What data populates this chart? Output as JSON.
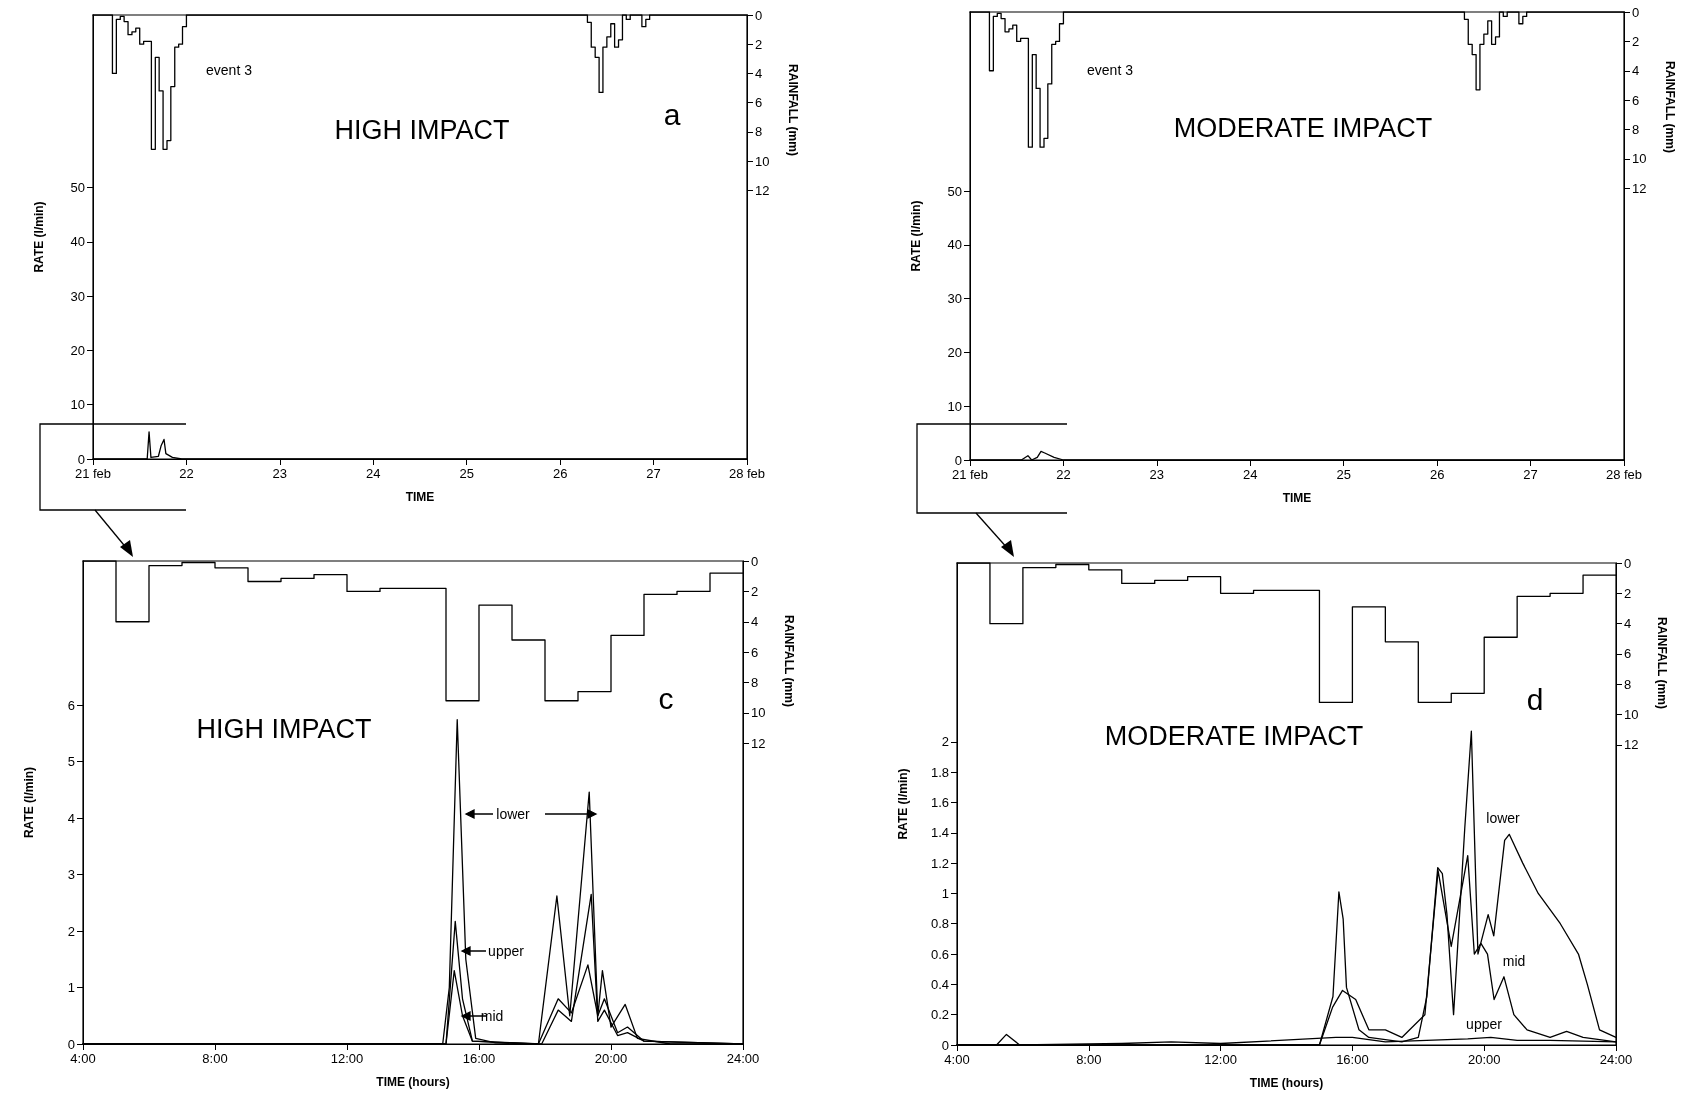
{
  "chart_data": [
    {
      "type": "line",
      "title": "HIGH IMPACT",
      "subtitle": "a",
      "xlabel": "TIME",
      "ylabel": "RATE (l/min)",
      "y2label": "RAINFALL (mm)",
      "marker": "none",
      "line_style": "solid",
      "annotations": [
        "event 3"
      ],
      "xlim": [
        21,
        28
      ],
      "xticks": [
        {
          "value": 21,
          "label": "21 feb"
        },
        22,
        23,
        24,
        25,
        26,
        27,
        {
          "value": 28,
          "label": "28 feb"
        }
      ],
      "ylim": [
        0,
        81.8
      ],
      "yticks": [
        0,
        10,
        20,
        30,
        40,
        50
      ],
      "y2lim": [
        30.4,
        0
      ],
      "y2ticks": [
        0,
        2,
        4,
        6,
        8,
        10,
        12
      ],
      "series": [
        {
          "type": "line",
          "color": "#000000",
          "x": [
            21,
            21.58,
            21.6,
            21.62,
            21.7,
            21.73,
            21.76,
            21.78,
            21.85,
            21.95,
            28
          ],
          "values": [
            0,
            0,
            5.0,
            0.3,
            0.5,
            2.5,
            3.6,
            1.0,
            0.3,
            0,
            0
          ]
        },
        {
          "type": "step",
          "axis": "y2",
          "color": "#000000",
          "x": [
            21,
            21.167,
            21.208,
            21.25,
            21.292,
            21.333,
            21.375,
            21.417,
            21.458,
            21.5,
            21.542,
            21.583,
            21.625,
            21.667,
            21.708,
            21.75,
            21.792,
            21.833,
            21.875,
            21.917,
            21.958,
            22,
            26.292,
            26.333,
            26.375,
            26.417,
            26.458,
            26.5,
            26.542,
            26.583,
            26.625,
            26.667,
            26.708,
            26.75,
            26.792,
            26.833,
            26.875,
            26.917,
            26.958,
            27,
            28
          ],
          "values": [
            0,
            0,
            4.0,
            0.3,
            0.1,
            0.45,
            1.35,
            1.15,
            0.9,
            2.0,
            1.8,
            1.8,
            9.2,
            2.9,
            5.2,
            9.2,
            8.6,
            4.9,
            2.2,
            2.0,
            0.8,
            0,
            0.5,
            2.2,
            2.9,
            5.3,
            2.2,
            1.5,
            0.6,
            2.2,
            1.7,
            0,
            0.3,
            0,
            0,
            0,
            0.8,
            0.3,
            0,
            0,
            0
          ]
        }
      ]
    },
    {
      "type": "line",
      "title": "MODERATE IMPACT",
      "xlabel": "TIME",
      "ylabel": "RATE (l/min)",
      "y2label": "RAINFALL (mm)",
      "marker": "none",
      "line_style": "solid",
      "annotations": [
        "event 3"
      ],
      "xlim": [
        21,
        28
      ],
      "xticks": [
        {
          "value": 21,
          "label": "21 feb"
        },
        22,
        23,
        24,
        25,
        26,
        27,
        {
          "value": 28,
          "label": "28 feb"
        }
      ],
      "ylim": [
        0,
        83.3
      ],
      "yticks": [
        0,
        10,
        20,
        30,
        40,
        50
      ],
      "y2lim": [
        30.5,
        0
      ],
      "y2ticks": [
        0,
        2,
        4,
        6,
        8,
        10,
        12
      ],
      "series": [
        {
          "type": "line",
          "color": "#000000",
          "x": [
            21,
            21.55,
            21.62,
            21.66,
            21.72,
            21.76,
            21.8,
            21.9,
            22.0,
            28
          ],
          "values": [
            0,
            0,
            0.8,
            0,
            0.5,
            1.6,
            1.3,
            0.5,
            0,
            0
          ]
        },
        {
          "type": "step",
          "axis": "y2",
          "color": "#000000",
          "x": [
            21,
            21.167,
            21.208,
            21.25,
            21.292,
            21.333,
            21.375,
            21.417,
            21.458,
            21.5,
            21.542,
            21.583,
            21.625,
            21.667,
            21.708,
            21.75,
            21.792,
            21.833,
            21.875,
            21.917,
            21.958,
            22,
            26.292,
            26.333,
            26.375,
            26.417,
            26.458,
            26.5,
            26.542,
            26.583,
            26.625,
            26.667,
            26.708,
            26.75,
            26.792,
            26.833,
            26.875,
            26.917,
            26.958,
            27,
            28
          ],
          "values": [
            0,
            0,
            4.0,
            0.3,
            0.1,
            0.45,
            1.35,
            1.15,
            0.9,
            2.0,
            1.8,
            1.8,
            9.2,
            2.9,
            5.2,
            9.2,
            8.6,
            4.9,
            2.2,
            2.0,
            0.8,
            0,
            0.5,
            2.2,
            2.9,
            5.3,
            2.2,
            1.5,
            0.6,
            2.2,
            1.7,
            0,
            0.3,
            0,
            0,
            0,
            0.8,
            0.3,
            0,
            0,
            0
          ]
        }
      ]
    },
    {
      "type": "line",
      "title": "HIGH IMPACT",
      "subtitle": "c",
      "xlabel": "TIME (hours)",
      "ylabel": "RATE (l/min)",
      "y2label": "RAINFALL (mm)",
      "marker": "none",
      "line_style": "solid",
      "annotations": [
        "lower",
        "upper",
        "mid"
      ],
      "xlim": [
        4,
        24
      ],
      "xticks": [
        {
          "value": 4,
          "label": "4:00"
        },
        {
          "value": 8,
          "label": "8:00"
        },
        {
          "value": 12,
          "label": "12:00"
        },
        {
          "value": 16,
          "label": "16:00"
        },
        {
          "value": 20,
          "label": "20:00"
        },
        {
          "value": 24,
          "label": "24:00"
        }
      ],
      "ylim": [
        0,
        8.55
      ],
      "yticks": [
        0,
        1,
        2,
        3,
        4,
        5,
        6
      ],
      "y2lim": [
        31.8,
        0
      ],
      "y2ticks": [
        0,
        2,
        4,
        6,
        8,
        10,
        12
      ],
      "series": [
        {
          "type": "line",
          "color": "#000000",
          "x": [
            4,
            14.9,
            15.1,
            15.34,
            15.6,
            15.9,
            16.5,
            17.8,
            18.36,
            18.75,
            19.34,
            19.6,
            19.74,
            20.0,
            20.43,
            20.8,
            21.8,
            24
          ],
          "values": [
            0,
            0,
            1.0,
            5.74,
            1.5,
            0.1,
            0.02,
            0,
            2.62,
            0.5,
            4.46,
            0.5,
            1.3,
            0.3,
            0.7,
            0.1,
            0,
            0
          ]
        },
        {
          "type": "line",
          "color": "#000000",
          "x": [
            4,
            15.0,
            15.28,
            15.5,
            15.8,
            17.8,
            18.4,
            18.8,
            19.3,
            19.6,
            19.8,
            20.2,
            20.5,
            21,
            24
          ],
          "values": [
            0,
            0,
            2.17,
            0.8,
            0.05,
            0,
            0.8,
            0.55,
            1.4,
            0.5,
            0.8,
            0.2,
            0.3,
            0.05,
            0
          ]
        },
        {
          "type": "line",
          "color": "#000000",
          "x": [
            4,
            15.0,
            15.25,
            15.5,
            15.8,
            17.9,
            18.4,
            18.8,
            19.4,
            19.6,
            19.8,
            20.2,
            20.5,
            21,
            24
          ],
          "values": [
            0,
            0,
            1.3,
            0.5,
            0.05,
            0,
            0.6,
            0.4,
            2.65,
            0.4,
            0.6,
            0.15,
            0.2,
            0.05,
            0
          ]
        },
        {
          "type": "step",
          "axis": "y2",
          "color": "#000000",
          "x": [
            4,
            5,
            6,
            7,
            8,
            9,
            10,
            11,
            12,
            13,
            14,
            15,
            16,
            17,
            18,
            19,
            20,
            21,
            22,
            23,
            24
          ],
          "values": [
            0,
            4.0,
            0.3,
            0.1,
            0.45,
            1.35,
            1.15,
            0.9,
            2.0,
            1.8,
            1.8,
            9.2,
            2.9,
            5.2,
            9.2,
            8.6,
            4.9,
            2.2,
            2.0,
            0.8,
            0.8
          ]
        }
      ]
    },
    {
      "type": "line",
      "title": "MODERATE IMPACT",
      "subtitle": "d",
      "xlabel": "TIME (hours)",
      "ylabel": "RATE (l/min)",
      "y2label": "RAINFALL (mm)",
      "marker": "none",
      "line_style": "solid",
      "annotations": [
        "lower",
        "mid",
        "upper"
      ],
      "xlim": [
        4,
        24
      ],
      "xticks": [
        {
          "value": 4,
          "label": "4:00"
        },
        {
          "value": 8,
          "label": "8:00"
        },
        {
          "value": 12,
          "label": "12:00"
        },
        {
          "value": 16,
          "label": "16:00"
        },
        {
          "value": 20,
          "label": "20:00"
        },
        {
          "value": 24,
          "label": "24:00"
        }
      ],
      "ylim": [
        0,
        3.18
      ],
      "yticks": [
        0,
        0.2,
        0.4,
        0.6,
        0.8,
        1,
        1.2,
        1.4,
        1.6,
        1.8,
        2
      ],
      "y2lim": [
        31.8,
        0
      ],
      "y2ticks": [
        0,
        2,
        4,
        6,
        8,
        10,
        12
      ],
      "series": [
        {
          "type": "line",
          "color": "#000000",
          "x": [
            4,
            15.0,
            15.41,
            15.59,
            15.72,
            15.82,
            16.2,
            16.5,
            17.5,
            18.0,
            18.26,
            18.59,
            18.73,
            18.87,
            19.07,
            19.41,
            19.61,
            19.81,
            20.12,
            20.29,
            20.62,
            20.76,
            21.17,
            21.64,
            22.31,
            22.86,
            23.13,
            23.5,
            24
          ],
          "values": [
            0,
            0,
            0.32,
            1.01,
            0.83,
            0.38,
            0.1,
            0.05,
            0.02,
            0.05,
            0.32,
            1.17,
            1.13,
            0.86,
            0.2,
            1.43,
            2.07,
            0.6,
            0.86,
            0.72,
            1.35,
            1.39,
            1.2,
            1.0,
            0.8,
            0.6,
            0.4,
            0.1,
            0.05
          ]
        },
        {
          "type": "line",
          "color": "#000000",
          "x": [
            4,
            15.0,
            15.4,
            15.7,
            16.1,
            16.5,
            17.0,
            17.5,
            18.2,
            18.6,
            19.0,
            19.5,
            19.7,
            19.9,
            20.1,
            20.3,
            20.6,
            20.9,
            21.3,
            22.0,
            22.5,
            23.0,
            24
          ],
          "values": [
            0,
            0,
            0.25,
            0.36,
            0.3,
            0.1,
            0.1,
            0.05,
            0.2,
            1.15,
            0.65,
            1.25,
            0.6,
            0.67,
            0.6,
            0.3,
            0.45,
            0.2,
            0.1,
            0.05,
            0.09,
            0.05,
            0.02
          ]
        },
        {
          "type": "line",
          "color": "#000000",
          "x": [
            4,
            5.2,
            5.5,
            5.9,
            9,
            10.5,
            12,
            15.5,
            16,
            17,
            19.5,
            20.2,
            21,
            22,
            24
          ],
          "values": [
            0,
            0,
            0.07,
            0,
            0.01,
            0.02,
            0.01,
            0.05,
            0.05,
            0.02,
            0.04,
            0.05,
            0.03,
            0.03,
            0.02
          ]
        },
        {
          "type": "step",
          "axis": "y2",
          "color": "#000000",
          "x": [
            4,
            5,
            6,
            7,
            8,
            9,
            10,
            11,
            12,
            13,
            14,
            15,
            16,
            17,
            18,
            19,
            20,
            21,
            22,
            23,
            24
          ],
          "values": [
            0,
            4.0,
            0.3,
            0.1,
            0.45,
            1.35,
            1.15,
            0.9,
            2.0,
            1.8,
            1.8,
            9.2,
            2.9,
            5.2,
            9.2,
            8.6,
            4.9,
            2.2,
            2.0,
            0.8,
            0.8
          ]
        }
      ]
    }
  ]
}
